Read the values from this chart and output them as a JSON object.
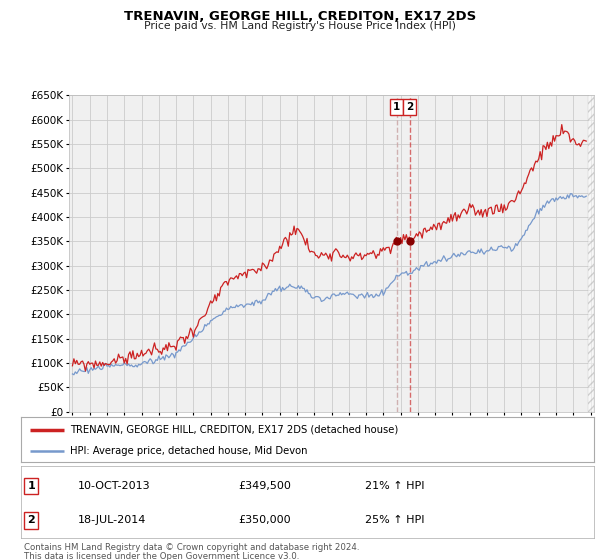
{
  "title": "TRENAVIN, GEORGE HILL, CREDITON, EX17 2DS",
  "subtitle": "Price paid vs. HM Land Registry's House Price Index (HPI)",
  "ylim": [
    0,
    650000
  ],
  "yticks": [
    0,
    50000,
    100000,
    150000,
    200000,
    250000,
    300000,
    350000,
    400000,
    450000,
    500000,
    550000,
    600000,
    650000
  ],
  "xlim_start": 1994.8,
  "xlim_end": 2025.2,
  "hpi_color": "#7799cc",
  "price_color": "#cc2222",
  "marker_color": "#880000",
  "grid_color": "#cccccc",
  "background_color": "#ffffff",
  "plot_bg_color": "#f0f0f0",
  "vline1_color": "#ddaaaa",
  "vline2_color": "#cc4444",
  "legend_label_price": "TRENAVIN, GEORGE HILL, CREDITON, EX17 2DS (detached house)",
  "legend_label_hpi": "HPI: Average price, detached house, Mid Devon",
  "sale1_date": "10-OCT-2013",
  "sale1_price": "£349,500",
  "sale1_pct": "21% ↑ HPI",
  "sale1_x": 2013.78,
  "sale1_y": 349500,
  "sale2_date": "18-JUL-2014",
  "sale2_price": "£350,000",
  "sale2_pct": "25% ↑ HPI",
  "sale2_x": 2014.54,
  "sale2_y": 350000,
  "vline1_x": 2013.78,
  "vline2_x": 2014.54,
  "footer_line1": "Contains HM Land Registry data © Crown copyright and database right 2024.",
  "footer_line2": "This data is licensed under the Open Government Licence v3.0."
}
